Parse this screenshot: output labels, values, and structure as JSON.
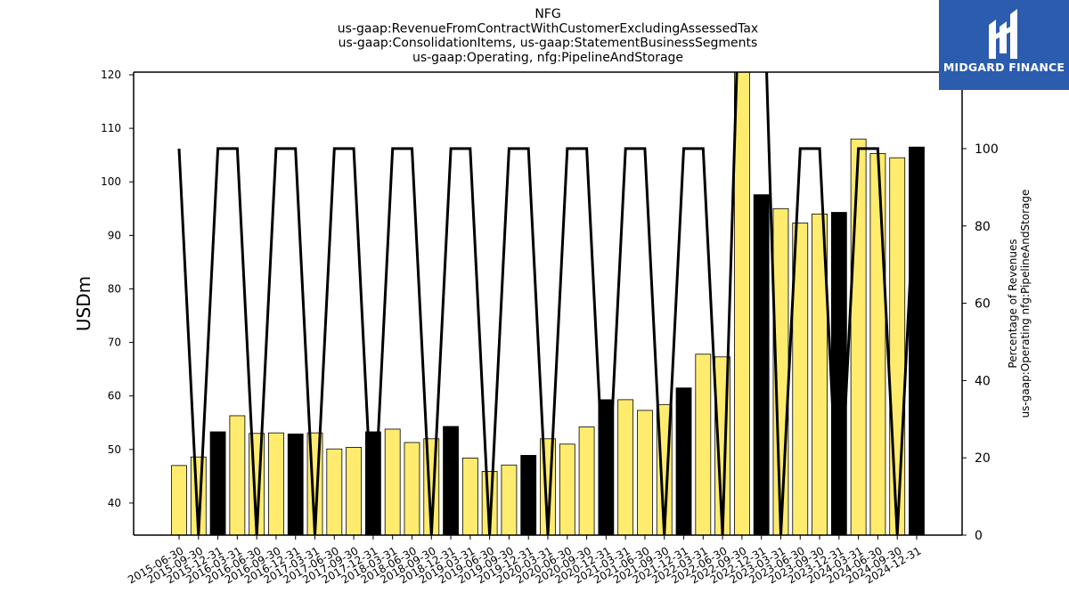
{
  "chart_data": {
    "type": "bar",
    "title": [
      "NFG",
      "us-gaap:RevenueFromContractWithCustomerExcludingAssessedTax",
      "us-gaap:ConsolidationItems, us-gaap:StatementBusinessSegments",
      "us-gaap:Operating, nfg:PipelineAndStorage"
    ],
    "ylabel": "USDm",
    "y2label": [
      "Percentage of Revenues",
      "us-gaap:Operating nfg:PipelineAndStorage"
    ],
    "ylim": [
      34,
      120.5
    ],
    "y2lim": [
      0,
      119.8
    ],
    "yticks": [
      40,
      50,
      60,
      70,
      80,
      90,
      100,
      110,
      120
    ],
    "y2ticks": [
      0,
      20,
      40,
      60,
      80,
      100
    ],
    "categories": [
      "2015-06-30",
      "2015-09-30",
      "2015-12-31",
      "2016-03-31",
      "2016-06-30",
      "2016-09-30",
      "2016-12-31",
      "2017-03-31",
      "2017-06-30",
      "2017-09-30",
      "2017-12-31",
      "2018-03-31",
      "2018-06-30",
      "2018-09-30",
      "2018-12-31",
      "2019-03-31",
      "2019-06-30",
      "2019-09-30",
      "2019-12-31",
      "2020-03-31",
      "2020-06-30",
      "2020-09-30",
      "2020-12-31",
      "2021-03-31",
      "2021-06-30",
      "2021-09-30",
      "2021-12-31",
      "2022-03-31",
      "2022-06-30",
      "2022-09-30",
      "2022-12-31",
      "2023-03-31",
      "2023-06-30",
      "2023-09-30",
      "2023-12-31",
      "2024-03-31",
      "2024-06-30",
      "2024-09-30",
      "2024-12-31"
    ],
    "series": [
      {
        "type": "bar",
        "axis": "left",
        "values": [
          47.0,
          48.6,
          53.3,
          56.3,
          53.0,
          53.1,
          52.9,
          53.1,
          50.1,
          50.4,
          53.3,
          53.8,
          51.3,
          52.0,
          54.3,
          48.4,
          45.9,
          47.1,
          48.9,
          52.0,
          51.0,
          54.2,
          59.3,
          59.3,
          57.3,
          58.4,
          61.5,
          67.8,
          67.3,
          121.5,
          97.6,
          95.0,
          92.3,
          94.0,
          94.3,
          108.0,
          105.3,
          104.5,
          106.5
        ],
        "colors": [
          "#ffec6e",
          "#ffec6e",
          "#000000",
          "#ffec6e",
          "#ffec6e",
          "#ffec6e",
          "#000000",
          "#ffec6e",
          "#ffec6e",
          "#ffec6e",
          "#000000",
          "#ffec6e",
          "#ffec6e",
          "#ffec6e",
          "#000000",
          "#ffec6e",
          "#ffec6e",
          "#ffec6e",
          "#000000",
          "#ffec6e",
          "#ffec6e",
          "#ffec6e",
          "#000000",
          "#ffec6e",
          "#ffec6e",
          "#ffec6e",
          "#000000",
          "#ffec6e",
          "#ffec6e",
          "#ffec6e",
          "#000000",
          "#ffec6e",
          "#ffec6e",
          "#ffec6e",
          "#000000",
          "#ffec6e",
          "#ffec6e",
          "#ffec6e",
          "#000000"
        ]
      },
      {
        "type": "line",
        "axis": "right",
        "values": [
          100,
          0,
          100,
          100,
          0,
          100,
          100,
          0,
          100,
          100,
          0,
          100,
          100,
          0,
          100,
          100,
          0,
          100,
          100,
          0,
          100,
          100,
          0,
          100,
          100,
          0,
          100,
          100,
          0,
          164,
          164,
          0,
          100,
          100,
          0,
          100,
          100,
          0,
          100
        ]
      }
    ]
  },
  "logo": {
    "text": "MIDGARD FINANCE",
    "background": "#2b5cad"
  }
}
